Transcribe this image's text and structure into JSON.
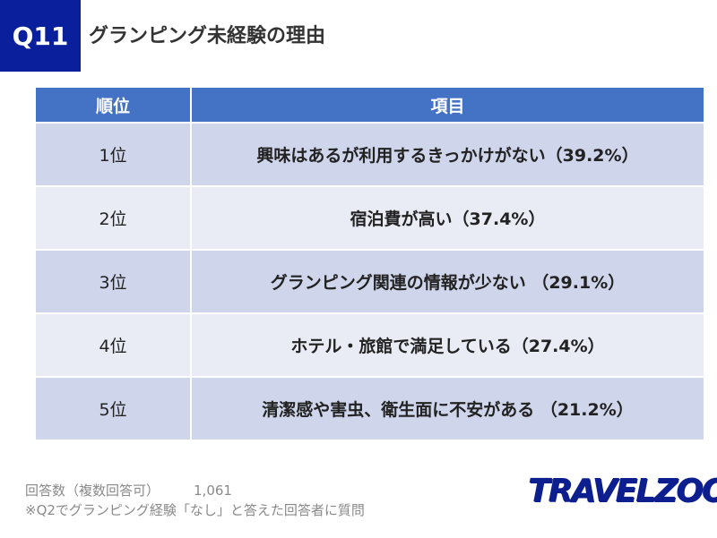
{
  "header": {
    "badge": "Q11",
    "title": "グランピング未経験の理由"
  },
  "table": {
    "headers": [
      "順位",
      "項目"
    ],
    "rows": [
      {
        "rank": "1位",
        "item": "興味はあるが利用するきっかけがない（39.2%）"
      },
      {
        "rank": "2位",
        "item": "宿泊費が高い（37.4%）"
      },
      {
        "rank": "3位",
        "item": "グランピング関連の情報が少ない （29.1%）"
      },
      {
        "rank": "4位",
        "item": "ホテル・旅館で満足している（27.4%）"
      },
      {
        "rank": "5位",
        "item": "清潔感や害虫、衛生面に不安がある （21.2%）"
      }
    ]
  },
  "footnote": {
    "respondents_label": "回答数（複数回答可）",
    "respondents_count": "1,061",
    "note": "※Q2でグランピング経験「なし」と答えた回答者に質問"
  },
  "logo": {
    "text": "TRAVELZOO",
    "mark": "®"
  },
  "colors": {
    "badge": "#0a1f9c",
    "header_row": "#4472c4",
    "row_dark": "#cfd5ea",
    "row_light": "#e9ebf5",
    "logo": "#0d1e8f"
  }
}
